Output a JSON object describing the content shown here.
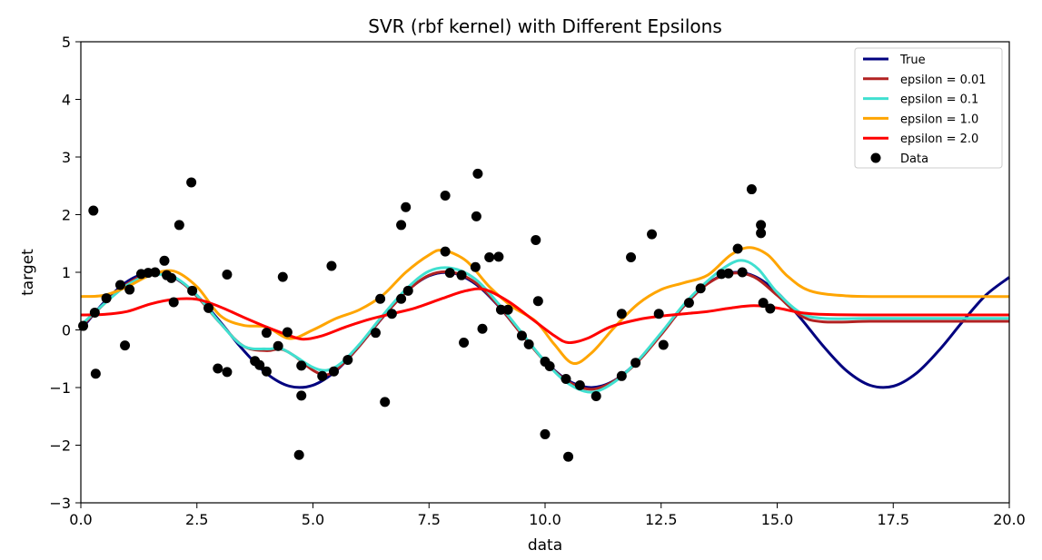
{
  "chart_data": {
    "type": "line",
    "title": "SVR (rbf kernel) with Different Epsilons",
    "xlabel": "data",
    "ylabel": "target",
    "xlim": [
      0,
      20
    ],
    "ylim": [
      -3,
      5
    ],
    "xticks": [
      "0.0",
      "2.5",
      "5.0",
      "7.5",
      "10.0",
      "12.5",
      "15.0",
      "17.5",
      "20.0"
    ],
    "yticks": [
      "−3",
      "−2",
      "−1",
      "0",
      "1",
      "2",
      "3",
      "4",
      "5"
    ],
    "grid": false,
    "legend_position": "top-right",
    "series": [
      {
        "name": "True",
        "color": "#00007f",
        "points": [
          [
            0,
            0
          ],
          [
            0.5,
            0.479
          ],
          [
            1.0,
            0.841
          ],
          [
            1.5,
            0.997
          ],
          [
            2.0,
            0.909
          ],
          [
            2.5,
            0.598
          ],
          [
            3.0,
            0.141
          ],
          [
            3.5,
            -0.351
          ],
          [
            4.0,
            -0.757
          ],
          [
            4.5,
            -0.978
          ],
          [
            5.0,
            -0.959
          ],
          [
            5.5,
            -0.706
          ],
          [
            6.0,
            -0.279
          ],
          [
            6.5,
            0.215
          ],
          [
            7.0,
            0.657
          ],
          [
            7.5,
            0.938
          ],
          [
            8.0,
            0.989
          ],
          [
            8.5,
            0.798
          ],
          [
            9.0,
            0.412
          ],
          [
            9.5,
            -0.075
          ],
          [
            10.0,
            -0.544
          ],
          [
            10.5,
            -0.88
          ],
          [
            11.0,
            -1.0
          ],
          [
            11.5,
            -0.875
          ],
          [
            12.0,
            -0.537
          ],
          [
            12.5,
            -0.066
          ],
          [
            13.0,
            0.42
          ],
          [
            13.5,
            0.804
          ],
          [
            14.0,
            0.991
          ],
          [
            14.5,
            0.935
          ],
          [
            15.0,
            0.65
          ],
          [
            15.5,
            0.206
          ],
          [
            16.0,
            -0.288
          ],
          [
            16.5,
            -0.712
          ],
          [
            17.0,
            -0.961
          ],
          [
            17.5,
            -0.976
          ],
          [
            18.0,
            -0.751
          ],
          [
            18.5,
            -0.342
          ],
          [
            19.0,
            0.15
          ],
          [
            19.5,
            0.606
          ],
          [
            20.0,
            0.913
          ]
        ]
      },
      {
        "name": "epsilon = 0.01",
        "color": "#b22222",
        "points": [
          [
            0,
            0.05
          ],
          [
            0.5,
            0.45
          ],
          [
            1.0,
            0.8
          ],
          [
            1.5,
            0.98
          ],
          [
            2.0,
            0.92
          ],
          [
            2.5,
            0.58
          ],
          [
            3.0,
            0.12
          ],
          [
            3.5,
            -0.28
          ],
          [
            4.0,
            -0.36
          ],
          [
            4.3,
            -0.33
          ],
          [
            4.6,
            -0.45
          ],
          [
            5.0,
            -0.7
          ],
          [
            5.3,
            -0.78
          ],
          [
            5.6,
            -0.62
          ],
          [
            6.0,
            -0.28
          ],
          [
            6.5,
            0.22
          ],
          [
            7.0,
            0.65
          ],
          [
            7.5,
            0.95
          ],
          [
            8.0,
            1.0
          ],
          [
            8.5,
            0.82
          ],
          [
            9.0,
            0.42
          ],
          [
            9.5,
            -0.08
          ],
          [
            10.0,
            -0.55
          ],
          [
            10.5,
            -0.9
          ],
          [
            11.0,
            -1.03
          ],
          [
            11.5,
            -0.88
          ],
          [
            12.0,
            -0.55
          ],
          [
            12.5,
            -0.08
          ],
          [
            13.0,
            0.42
          ],
          [
            13.5,
            0.8
          ],
          [
            14.0,
            0.98
          ],
          [
            14.5,
            0.92
          ],
          [
            15.0,
            0.6
          ],
          [
            15.5,
            0.25
          ],
          [
            16.0,
            0.14
          ],
          [
            17.0,
            0.15
          ],
          [
            18.0,
            0.15
          ],
          [
            20.0,
            0.15
          ]
        ]
      },
      {
        "name": "epsilon = 0.1",
        "color": "#40e0d0",
        "points": [
          [
            0,
            0.08
          ],
          [
            0.5,
            0.45
          ],
          [
            1.0,
            0.78
          ],
          [
            1.5,
            0.95
          ],
          [
            2.0,
            0.92
          ],
          [
            2.5,
            0.6
          ],
          [
            3.0,
            0.12
          ],
          [
            3.5,
            -0.28
          ],
          [
            4.0,
            -0.33
          ],
          [
            4.3,
            -0.32
          ],
          [
            4.6,
            -0.45
          ],
          [
            5.0,
            -0.65
          ],
          [
            5.3,
            -0.7
          ],
          [
            5.6,
            -0.58
          ],
          [
            6.0,
            -0.25
          ],
          [
            6.5,
            0.25
          ],
          [
            7.0,
            0.7
          ],
          [
            7.5,
            1.02
          ],
          [
            8.0,
            1.07
          ],
          [
            8.5,
            0.88
          ],
          [
            9.0,
            0.45
          ],
          [
            9.5,
            -0.05
          ],
          [
            10.0,
            -0.55
          ],
          [
            10.5,
            -0.93
          ],
          [
            11.0,
            -1.08
          ],
          [
            11.5,
            -0.9
          ],
          [
            12.0,
            -0.53
          ],
          [
            12.5,
            -0.05
          ],
          [
            13.0,
            0.45
          ],
          [
            13.5,
            0.85
          ],
          [
            14.0,
            1.15
          ],
          [
            14.3,
            1.2
          ],
          [
            14.6,
            1.05
          ],
          [
            15.0,
            0.65
          ],
          [
            15.5,
            0.3
          ],
          [
            16.0,
            0.2
          ],
          [
            17.0,
            0.2
          ],
          [
            18.0,
            0.2
          ],
          [
            20.0,
            0.2
          ]
        ]
      },
      {
        "name": "epsilon = 1.0",
        "color": "#ffa500",
        "points": [
          [
            0,
            0.58
          ],
          [
            0.5,
            0.6
          ],
          [
            1.0,
            0.75
          ],
          [
            1.5,
            0.95
          ],
          [
            2.0,
            1.02
          ],
          [
            2.5,
            0.75
          ],
          [
            3.0,
            0.25
          ],
          [
            3.5,
            0.08
          ],
          [
            4.0,
            0.05
          ],
          [
            4.5,
            -0.15
          ],
          [
            5.0,
            0.0
          ],
          [
            5.5,
            0.2
          ],
          [
            6.0,
            0.35
          ],
          [
            6.5,
            0.6
          ],
          [
            7.0,
            1.0
          ],
          [
            7.5,
            1.3
          ],
          [
            7.8,
            1.38
          ],
          [
            8.3,
            1.2
          ],
          [
            8.8,
            0.75
          ],
          [
            9.3,
            0.4
          ],
          [
            9.8,
            0.15
          ],
          [
            10.2,
            -0.25
          ],
          [
            10.6,
            -0.58
          ],
          [
            11.0,
            -0.4
          ],
          [
            11.5,
            0.05
          ],
          [
            12.0,
            0.45
          ],
          [
            12.5,
            0.7
          ],
          [
            13.0,
            0.82
          ],
          [
            13.5,
            0.95
          ],
          [
            14.0,
            1.3
          ],
          [
            14.4,
            1.43
          ],
          [
            14.8,
            1.3
          ],
          [
            15.2,
            0.95
          ],
          [
            15.7,
            0.68
          ],
          [
            16.5,
            0.59
          ],
          [
            17.5,
            0.58
          ],
          [
            20.0,
            0.58
          ]
        ]
      },
      {
        "name": "epsilon = 2.0",
        "color": "#ff0000",
        "points": [
          [
            0,
            0.26
          ],
          [
            0.5,
            0.27
          ],
          [
            1.0,
            0.32
          ],
          [
            1.5,
            0.45
          ],
          [
            2.0,
            0.53
          ],
          [
            2.5,
            0.53
          ],
          [
            3.0,
            0.4
          ],
          [
            3.5,
            0.22
          ],
          [
            4.0,
            0.05
          ],
          [
            4.5,
            -0.1
          ],
          [
            4.8,
            -0.16
          ],
          [
            5.2,
            -0.1
          ],
          [
            5.7,
            0.05
          ],
          [
            6.2,
            0.18
          ],
          [
            6.7,
            0.28
          ],
          [
            7.2,
            0.38
          ],
          [
            7.8,
            0.55
          ],
          [
            8.3,
            0.68
          ],
          [
            8.7,
            0.7
          ],
          [
            9.2,
            0.5
          ],
          [
            9.7,
            0.2
          ],
          [
            10.2,
            -0.1
          ],
          [
            10.5,
            -0.22
          ],
          [
            10.9,
            -0.15
          ],
          [
            11.4,
            0.05
          ],
          [
            12.0,
            0.18
          ],
          [
            12.5,
            0.24
          ],
          [
            13.0,
            0.28
          ],
          [
            13.5,
            0.32
          ],
          [
            14.0,
            0.38
          ],
          [
            14.5,
            0.42
          ],
          [
            15.0,
            0.38
          ],
          [
            15.5,
            0.3
          ],
          [
            16.0,
            0.27
          ],
          [
            17.0,
            0.26
          ],
          [
            20.0,
            0.26
          ]
        ]
      },
      {
        "name": "Data",
        "color": "#000000",
        "type": "scatter",
        "points": [
          [
            0.05,
            0.07
          ],
          [
            0.27,
            2.07
          ],
          [
            0.3,
            0.3
          ],
          [
            0.32,
            -0.76
          ],
          [
            0.55,
            0.55
          ],
          [
            0.85,
            0.78
          ],
          [
            0.95,
            -0.27
          ],
          [
            1.05,
            0.7
          ],
          [
            1.3,
            0.97
          ],
          [
            1.45,
            0.99
          ],
          [
            1.6,
            1.0
          ],
          [
            1.8,
            1.2
          ],
          [
            1.85,
            0.95
          ],
          [
            1.95,
            0.9
          ],
          [
            2.0,
            0.48
          ],
          [
            2.12,
            1.82
          ],
          [
            2.38,
            2.56
          ],
          [
            2.4,
            0.68
          ],
          [
            2.75,
            0.38
          ],
          [
            2.95,
            -0.67
          ],
          [
            3.15,
            -0.73
          ],
          [
            3.15,
            0.96
          ],
          [
            3.75,
            -0.54
          ],
          [
            3.85,
            -0.61
          ],
          [
            4.0,
            -0.72
          ],
          [
            4.0,
            -0.05
          ],
          [
            4.25,
            -0.28
          ],
          [
            4.35,
            0.92
          ],
          [
            4.45,
            -0.04
          ],
          [
            4.7,
            -2.17
          ],
          [
            4.75,
            -0.62
          ],
          [
            4.75,
            -1.14
          ],
          [
            5.2,
            -0.8
          ],
          [
            5.4,
            1.11
          ],
          [
            5.45,
            -0.72
          ],
          [
            5.75,
            -0.52
          ],
          [
            6.35,
            -0.05
          ],
          [
            6.45,
            0.54
          ],
          [
            6.55,
            -1.25
          ],
          [
            6.7,
            0.28
          ],
          [
            6.9,
            1.82
          ],
          [
            6.9,
            0.54
          ],
          [
            7.0,
            2.13
          ],
          [
            7.05,
            0.68
          ],
          [
            7.85,
            2.33
          ],
          [
            7.85,
            1.36
          ],
          [
            7.95,
            0.99
          ],
          [
            8.2,
            0.95
          ],
          [
            8.25,
            -0.22
          ],
          [
            8.5,
            1.09
          ],
          [
            8.52,
            1.97
          ],
          [
            8.55,
            2.71
          ],
          [
            8.65,
            0.02
          ],
          [
            8.8,
            1.26
          ],
          [
            9.0,
            1.27
          ],
          [
            9.05,
            0.35
          ],
          [
            9.2,
            0.35
          ],
          [
            9.5,
            -0.1
          ],
          [
            9.65,
            -0.25
          ],
          [
            9.8,
            1.56
          ],
          [
            9.85,
            0.5
          ],
          [
            10.0,
            -1.81
          ],
          [
            10.0,
            -0.55
          ],
          [
            10.1,
            -0.63
          ],
          [
            10.45,
            -0.85
          ],
          [
            10.5,
            -2.2
          ],
          [
            10.75,
            -0.96
          ],
          [
            11.1,
            -1.15
          ],
          [
            11.65,
            0.28
          ],
          [
            11.65,
            -0.8
          ],
          [
            11.85,
            1.26
          ],
          [
            11.95,
            -0.57
          ],
          [
            12.3,
            1.66
          ],
          [
            12.45,
            0.28
          ],
          [
            12.55,
            -0.26
          ],
          [
            13.1,
            0.47
          ],
          [
            13.35,
            0.72
          ],
          [
            13.8,
            0.97
          ],
          [
            13.95,
            0.98
          ],
          [
            14.15,
            1.41
          ],
          [
            14.25,
            1.0
          ],
          [
            14.45,
            2.44
          ],
          [
            14.65,
            1.82
          ],
          [
            14.65,
            1.68
          ],
          [
            14.7,
            0.47
          ],
          [
            14.85,
            0.37
          ]
        ]
      }
    ]
  }
}
